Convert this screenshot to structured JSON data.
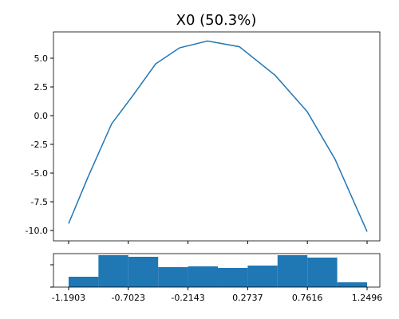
{
  "chart_data": [
    {
      "type": "line",
      "title": "X0 (50.3%)",
      "color": "#1f77b4",
      "x": [
        -1.1903,
        -1.034,
        -0.838,
        -0.675,
        -0.479,
        -0.284,
        -0.055,
        0.206,
        0.499,
        0.76,
        0.988,
        1.2496
      ],
      "values": [
        -9.4,
        -5.4,
        -0.7,
        1.6,
        4.5,
        5.9,
        6.5,
        6.0,
        3.5,
        0.35,
        -3.8,
        -10.1
      ],
      "xlim": [
        -1.314,
        1.354
      ],
      "ylim": [
        -10.9,
        7.29
      ],
      "xticks": [
        -1.1903,
        -0.7023,
        -0.2143,
        0.2737,
        0.7616,
        1.2496
      ],
      "yticks": [
        {
          "value": -10,
          "label": "-10.0"
        },
        {
          "value": -7.5,
          "label": "-7.5"
        },
        {
          "value": -5,
          "label": "-5.0"
        },
        {
          "value": -2.5,
          "label": "-2.5"
        },
        {
          "value": 0,
          "label": "0.0"
        },
        {
          "value": 2.5,
          "label": "2.5"
        },
        {
          "value": 5,
          "label": "5.0"
        }
      ]
    },
    {
      "type": "histogram",
      "color": "#1f77b4",
      "bins": [
        -1.1903,
        -0.9463,
        -0.7023,
        -0.4583,
        -0.2143,
        0.0297,
        0.2737,
        0.5177,
        0.7616,
        1.0056,
        1.2496
      ],
      "counts": [
        13,
        40,
        38,
        25,
        26,
        24,
        27,
        40,
        37,
        6
      ],
      "xlim": [
        -1.314,
        1.354
      ],
      "ylim": [
        0,
        42
      ],
      "xticks": [
        -1.1903,
        -0.7023,
        -0.2143,
        0.2737,
        0.7616,
        1.2496
      ],
      "yticks": [
        0,
        28
      ]
    }
  ]
}
